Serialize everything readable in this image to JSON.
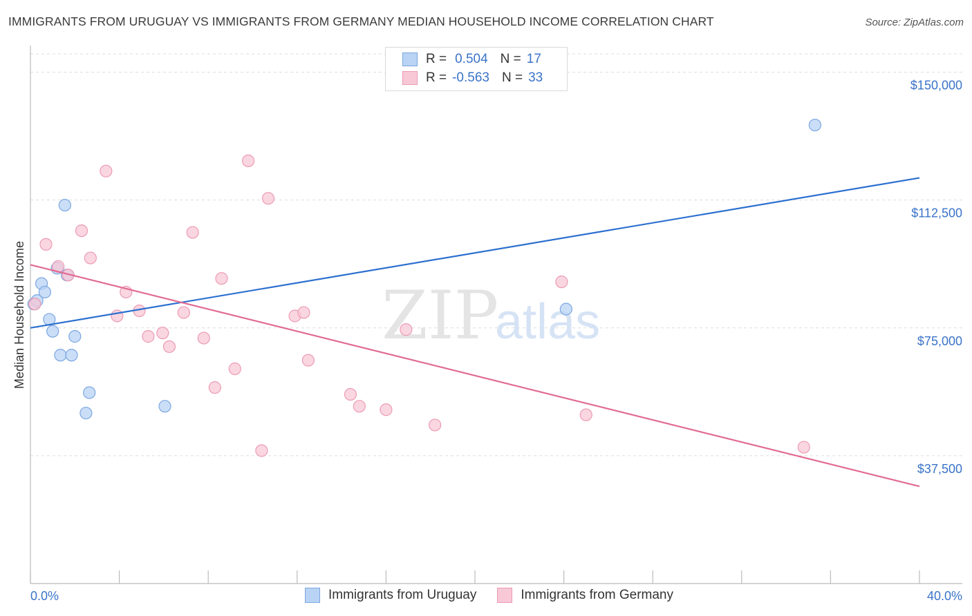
{
  "header": {
    "title": "IMMIGRANTS FROM URUGUAY VS IMMIGRANTS FROM GERMANY MEDIAN HOUSEHOLD INCOME CORRELATION CHART",
    "source": "Source: ZipAtlas.com"
  },
  "watermark": {
    "zip": "ZIP",
    "atlas": "atlas"
  },
  "legend": {
    "r_label": "R =",
    "n_label": "N =",
    "uruguay": {
      "r": "0.504",
      "n": "17"
    },
    "germany": {
      "r": "-0.563",
      "n": "33"
    }
  },
  "colors": {
    "uruguay_fill": "#b9d3f5",
    "uruguay_stroke": "#7aa6e0",
    "uruguay_line": "#2b6fcf",
    "germany_fill": "#f8c8d7",
    "germany_stroke": "#ec9ab4",
    "germany_line": "#e26a92",
    "tick_text": "#3a73c8",
    "grid": "#dddddd"
  },
  "chart_data": {
    "type": "scatter",
    "title": "IMMIGRANTS FROM URUGUAY VS IMMIGRANTS FROM GERMANY MEDIAN HOUSEHOLD INCOME CORRELATION CHART",
    "xlabel": "",
    "ylabel": "Median Household Income",
    "xlim": [
      0,
      40
    ],
    "ylim": [
      0,
      157000
    ],
    "x_tick_labels": [
      "0.0%",
      "40.0%"
    ],
    "y_ticks": [
      37500,
      75000,
      112500,
      150000
    ],
    "y_tick_labels": [
      "$37,500",
      "$75,000",
      "$112,500",
      "$150,000"
    ],
    "grid": true,
    "legend_position": "bottom",
    "series": [
      {
        "name": "Immigrants from Uruguay",
        "points": [
          [
            0.15,
            82000
          ],
          [
            0.3,
            83000
          ],
          [
            0.5,
            88000
          ],
          [
            0.65,
            85500
          ],
          [
            0.85,
            77500
          ],
          [
            1.0,
            74000
          ],
          [
            1.2,
            92500
          ],
          [
            1.35,
            67000
          ],
          [
            1.55,
            111000
          ],
          [
            1.65,
            90500
          ],
          [
            1.85,
            67000
          ],
          [
            2.0,
            72500
          ],
          [
            2.5,
            50000
          ],
          [
            2.65,
            56000
          ],
          [
            6.05,
            52000
          ],
          [
            24.1,
            80500
          ],
          [
            35.3,
            134500
          ]
        ],
        "trend": {
          "x": [
            0,
            40
          ],
          "y": [
            75000,
            119000
          ]
        }
      },
      {
        "name": "Immigrants from Germany",
        "points": [
          [
            0.2,
            82000
          ],
          [
            0.7,
            99500
          ],
          [
            1.25,
            93000
          ],
          [
            1.7,
            90500
          ],
          [
            2.3,
            103500
          ],
          [
            2.7,
            95500
          ],
          [
            3.4,
            121000
          ],
          [
            3.9,
            78500
          ],
          [
            4.3,
            85500
          ],
          [
            4.9,
            80000
          ],
          [
            5.3,
            72500
          ],
          [
            5.95,
            73500
          ],
          [
            6.25,
            69500
          ],
          [
            6.9,
            79500
          ],
          [
            7.3,
            103000
          ],
          [
            7.8,
            72000
          ],
          [
            8.3,
            57500
          ],
          [
            8.6,
            89500
          ],
          [
            9.2,
            63000
          ],
          [
            9.8,
            124000
          ],
          [
            10.4,
            39000
          ],
          [
            10.7,
            113000
          ],
          [
            11.9,
            78500
          ],
          [
            12.3,
            79500
          ],
          [
            12.5,
            65500
          ],
          [
            14.4,
            55500
          ],
          [
            14.8,
            52000
          ],
          [
            16.0,
            51000
          ],
          [
            16.9,
            74500
          ],
          [
            18.2,
            46500
          ],
          [
            23.9,
            88500
          ],
          [
            25.0,
            49500
          ],
          [
            34.8,
            40000
          ]
        ],
        "trend": {
          "x": [
            0,
            40
          ],
          "y": [
            93500,
            28500
          ]
        }
      }
    ]
  },
  "bottom_legend": {
    "uruguay": "Immigrants from Uruguay",
    "germany": "Immigrants from Germany"
  }
}
